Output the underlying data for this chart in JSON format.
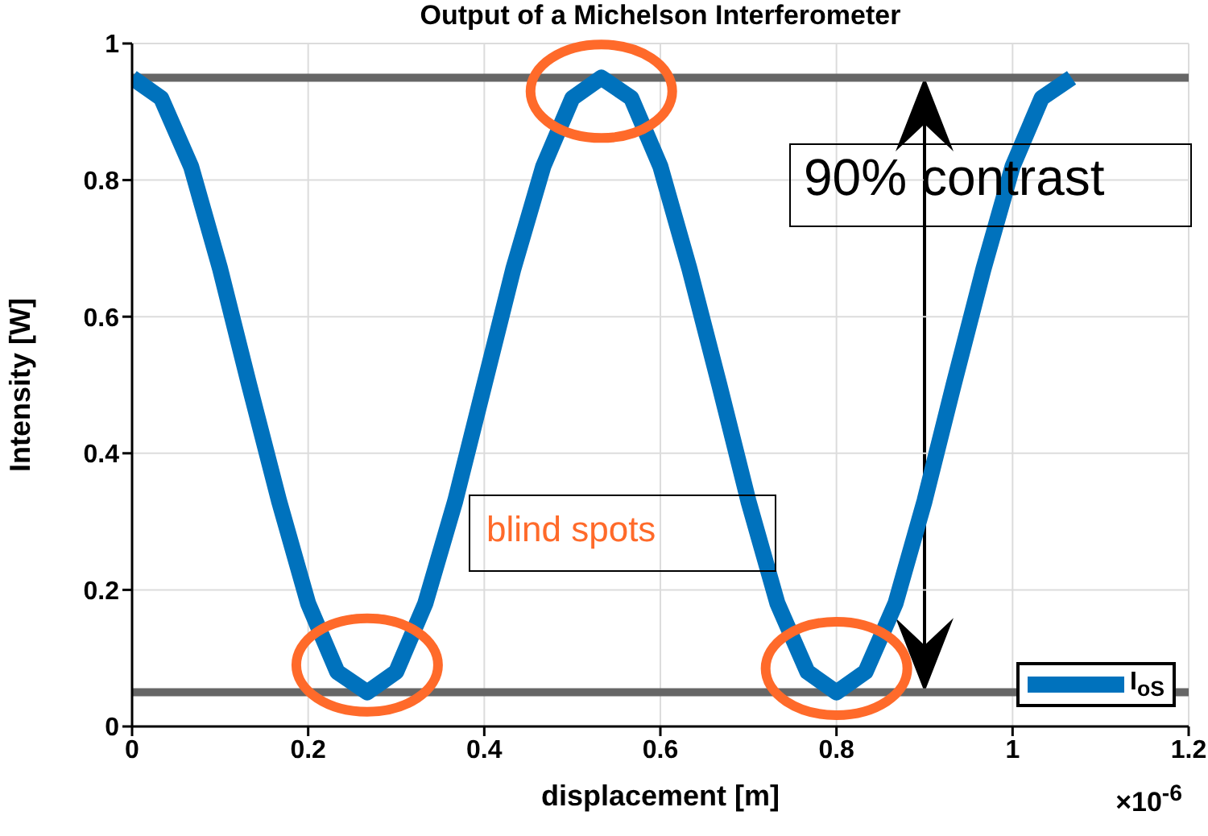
{
  "chart_data": {
    "type": "line",
    "title": "Output of a Michelson Interferometer",
    "xlabel": "displacement [m]",
    "ylabel": "Intensity [W]",
    "x": [
      0,
      0.033,
      0.067,
      0.1,
      0.133,
      0.167,
      0.2,
      0.233,
      0.267,
      0.3,
      0.333,
      0.367,
      0.4,
      0.433,
      0.467,
      0.5,
      0.533,
      0.567,
      0.6,
      0.633,
      0.667,
      0.7,
      0.733,
      0.767,
      0.8,
      0.833,
      0.867,
      0.9,
      0.933,
      0.967,
      1,
      1.033,
      1.067
    ],
    "series": [
      {
        "name": "I$_{oS}$",
        "color": "#0072bd",
        "values": [
          0.95,
          0.92,
          0.82,
          0.67,
          0.5,
          0.33,
          0.18,
          0.08,
          0.05,
          0.08,
          0.18,
          0.33,
          0.5,
          0.67,
          0.82,
          0.92,
          0.95,
          0.92,
          0.82,
          0.67,
          0.5,
          0.33,
          0.18,
          0.08,
          0.05,
          0.08,
          0.18,
          0.33,
          0.5,
          0.67,
          0.82,
          0.92,
          0.95
        ]
      }
    ],
    "xlim": [
      0,
      1.2
    ],
    "xticks": [
      0,
      0.2,
      0.4,
      0.6,
      0.8,
      1,
      1.2
    ],
    "ylim": [
      0,
      1
    ],
    "yticks": [
      0,
      0.2,
      0.4,
      0.6,
      0.8,
      1
    ],
    "ref_lines": [
      {
        "axis": "y",
        "value": 0.95,
        "color": "#666666"
      },
      {
        "axis": "y",
        "value": 0.05,
        "color": "#666666"
      }
    ],
    "annotations": [
      "90% contrast",
      "blind spots",
      "×10$^{-6}$"
    ],
    "grid": true,
    "legend": "bottom right",
    "marker": "none",
    "line_style": "solid"
  }
}
